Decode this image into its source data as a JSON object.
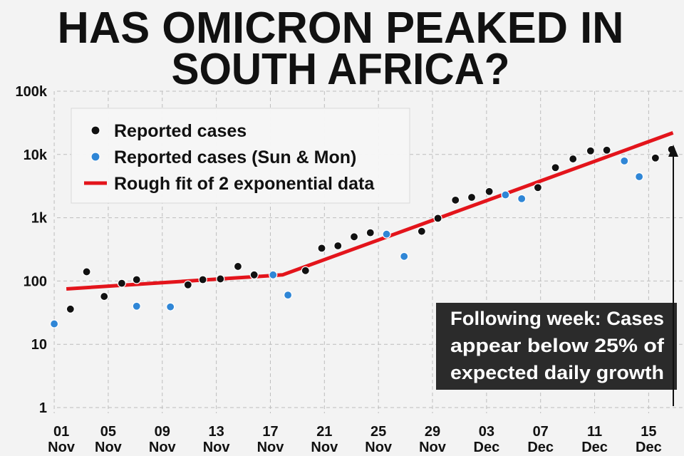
{
  "chart_data": {
    "type": "scatter",
    "title": [
      "HAS OMICRON PEAKED IN",
      "SOUTH AFRICA?"
    ],
    "annotation": [
      "Following week: Cases",
      "appear below 25% of",
      "expected daily growth"
    ],
    "log_scale": true,
    "grid": true,
    "legend": "top-left",
    "xlim": [
      -0.5,
      46.5
    ],
    "xticks": [
      {
        "value": 0,
        "label": "01 Nov"
      },
      {
        "value": 4,
        "label": "05 Nov"
      },
      {
        "value": 8,
        "label": "09 Nov"
      },
      {
        "value": 12,
        "label": "13 Nov"
      },
      {
        "value": 16,
        "label": "17 Nov"
      },
      {
        "value": 20,
        "label": "21 Nov"
      },
      {
        "value": 24,
        "label": "25 Nov"
      },
      {
        "value": 28,
        "label": "29 Nov"
      },
      {
        "value": 32,
        "label": "03 Dec"
      },
      {
        "value": 36,
        "label": "07 Dec"
      },
      {
        "value": 40,
        "label": "11 Dec"
      },
      {
        "value": 44,
        "label": "15 Dec"
      }
    ],
    "ylim": [
      1,
      100000
    ],
    "yticks": [
      1,
      10,
      100,
      {
        "value": 1000,
        "label": "1k"
      },
      {
        "value": 10000,
        "label": "10k"
      },
      {
        "value": 100000,
        "label": "100k"
      }
    ],
    "series": [
      {
        "name": "Reported cases",
        "type": "scatter",
        "color": "#111111",
        "x": [
          1.2,
          2.4,
          3.7,
          5.0,
          6.1,
          9.9,
          11.0,
          12.3,
          13.6,
          14.8,
          18.6,
          19.8,
          21.0,
          22.2,
          23.4,
          27.2,
          28.4,
          29.7,
          30.9,
          32.2,
          35.8,
          37.1,
          38.4,
          39.7,
          40.9,
          44.5,
          45.7
        ],
        "values": [
          36,
          140,
          57,
          92,
          105,
          87,
          105,
          108,
          170,
          125,
          146,
          330,
          360,
          500,
          580,
          610,
          980,
          1900,
          2100,
          2600,
          3000,
          6200,
          8500,
          11400,
          11700,
          8800,
          12000
        ]
      },
      {
        "name": "Reported cases (Sun & Mon)",
        "type": "scatter",
        "color": "#2f86d6",
        "x": [
          0,
          6.1,
          8.6,
          16.2,
          17.3,
          24.6,
          25.9,
          33.4,
          34.6,
          42.2,
          43.3
        ],
        "values": [
          21,
          40,
          39,
          125,
          60,
          550,
          245,
          2300,
          2000,
          7900,
          4450
        ]
      },
      {
        "name": "Rough fit of 2 exponential data",
        "type": "line",
        "color": "#e3141b",
        "x": [
          0.9,
          16.9,
          45.8
        ],
        "values": [
          75,
          125,
          22000
        ]
      }
    ]
  }
}
